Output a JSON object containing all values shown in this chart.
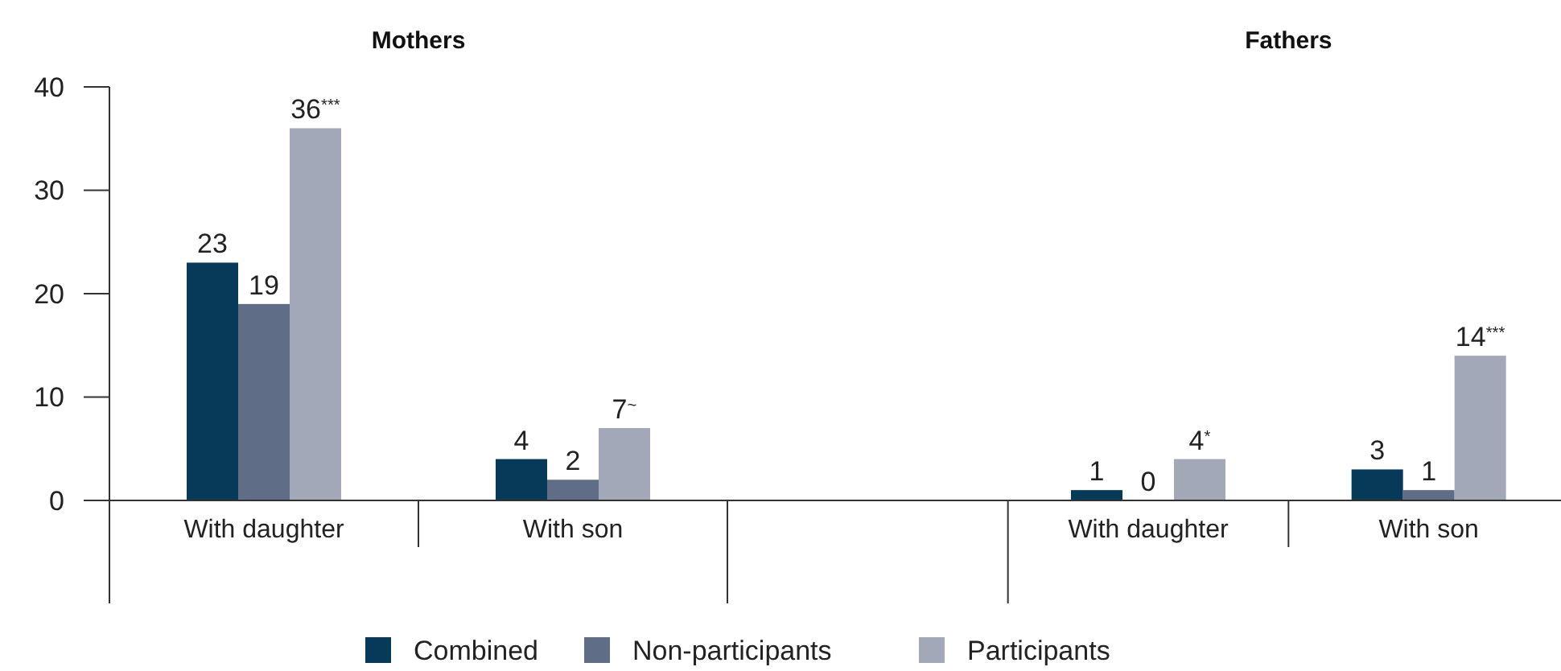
{
  "chart_data": [
    {
      "type": "bar",
      "title": "Mothers",
      "categories": [
        "With daughter",
        "With son"
      ],
      "ylim": [
        0,
        40
      ],
      "yticks": [
        0,
        10,
        20,
        30,
        40
      ],
      "legend": "bottom",
      "series": [
        {
          "name": "Combined",
          "color": "#063a58",
          "values": [
            23,
            4
          ],
          "value_labels": [
            "23",
            "4"
          ]
        },
        {
          "name": "Non-participants",
          "color": "#5f6d86",
          "values": [
            19,
            2
          ],
          "value_labels": [
            "19",
            "2"
          ]
        },
        {
          "name": "Participants",
          "color": "#a3a8b8",
          "values": [
            36,
            7
          ],
          "value_labels": [
            "36$^{***}$",
            "7$^{~}$"
          ]
        }
      ]
    },
    {
      "type": "bar",
      "title": "Fathers",
      "categories": [
        null,
        "With daughter",
        "With son"
      ],
      "ylim": [
        0,
        40
      ],
      "tick_labels": "x",
      "series": [
        {
          "color": "#063a58",
          "values": [
            null,
            1,
            3
          ],
          "value_labels": [
            null,
            "1",
            "3"
          ]
        },
        {
          "color": "#5f6d86",
          "values": [
            null,
            0,
            1
          ],
          "value_labels": [
            null,
            "0",
            "1"
          ]
        },
        {
          "color": "#a3a8b8",
          "values": [
            null,
            4,
            14
          ],
          "value_labels": [
            null,
            "4$^{*}$",
            "14$^{***}$"
          ]
        }
      ]
    }
  ]
}
